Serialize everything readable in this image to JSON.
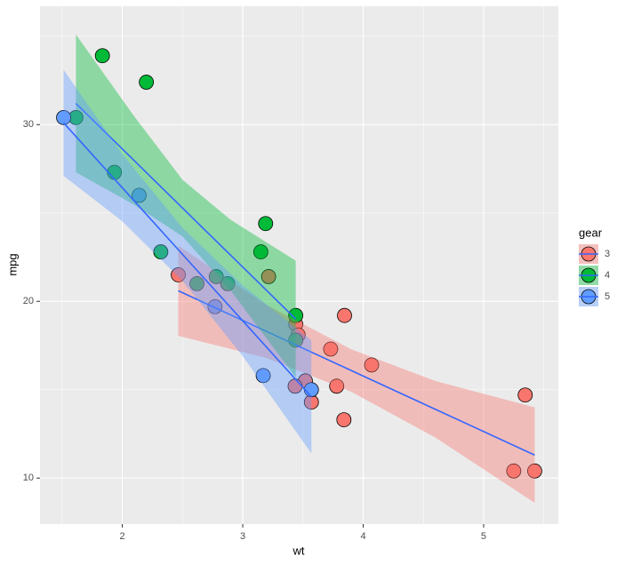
{
  "chart_data": {
    "type": "scatter",
    "x_label": "wt",
    "y_label": "mpg",
    "xlim": [
      1.317,
      5.62
    ],
    "ylim": [
      7.4,
      36.7
    ],
    "xticks": [
      2,
      3,
      4,
      5
    ],
    "yticks": [
      10,
      20,
      30
    ],
    "xticks_minor": [
      1.5,
      2.5,
      3.5,
      4.5,
      5.5
    ],
    "yticks_minor": [
      15,
      25,
      35
    ],
    "grid": true,
    "legend": {
      "title": "gear",
      "position": "right"
    },
    "line_color": "#3366FF",
    "series": [
      {
        "name": "3",
        "color": "#F8766D",
        "x": [
          3.215,
          3.44,
          3.46,
          3.57,
          4.07,
          3.73,
          3.78,
          5.25,
          5.424,
          5.345,
          2.465,
          3.52,
          3.435,
          3.84,
          3.845
        ],
        "values": [
          21.4,
          18.7,
          18.1,
          14.3,
          16.4,
          17.3,
          15.2,
          10.4,
          10.4,
          14.7,
          21.5,
          15.5,
          15.2,
          13.3,
          19.2
        ],
        "fit": {
          "x": [
            2.465,
            3.2,
            3.9,
            4.6,
            5.424
          ],
          "values": [
            20.6,
            18.29,
            16.09,
            13.89,
            11.3
          ],
          "lower": [
            18.05,
            16.79,
            14.89,
            12.29,
            8.6
          ],
          "upper": [
            23.15,
            19.79,
            17.29,
            15.49,
            14.0
          ]
        }
      },
      {
        "name": "4",
        "color": "#00BA38",
        "x": [
          2.62,
          2.875,
          2.32,
          3.19,
          3.15,
          3.44,
          3.44,
          2.2,
          1.615,
          1.835,
          1.935,
          2.78
        ],
        "values": [
          21,
          21,
          22.8,
          24.4,
          22.8,
          19.2,
          17.8,
          32.4,
          30.4,
          33.9,
          27.3,
          21.4
        ],
        "fit": {
          "x": [
            1.615,
            2.1,
            2.5,
            2.9,
            3.44
          ],
          "values": [
            31.2,
            27.96,
            25.28,
            22.61,
            19.0
          ],
          "lower": [
            27.3,
            25.46,
            23.68,
            20.61,
            15.7
          ],
          "upper": [
            35.1,
            30.46,
            26.88,
            24.61,
            22.3
          ]
        }
      },
      {
        "name": "5",
        "color": "#619CFF",
        "x": [
          2.14,
          1.513,
          3.17,
          2.77,
          3.57
        ],
        "values": [
          26,
          30.4,
          15.8,
          19.7,
          15
        ],
        "fit": {
          "x": [
            1.513,
            2,
            2.5,
            3,
            3.57
          ],
          "values": [
            30.1,
            26.43,
            22.66,
            18.9,
            14.6
          ],
          "lower": [
            27.1,
            24.53,
            21.16,
            16.9,
            11.4
          ],
          "upper": [
            33.1,
            28.33,
            24.16,
            20.9,
            17.8
          ]
        }
      }
    ]
  }
}
